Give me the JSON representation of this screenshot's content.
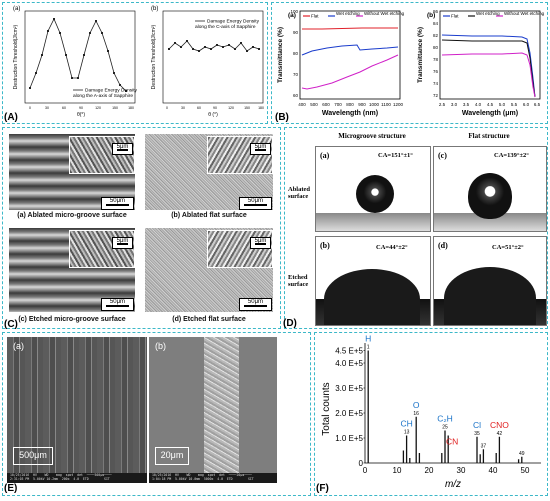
{
  "panelA": {
    "label": "(A)",
    "sub_a": "(a)",
    "sub_b": "(b)",
    "left_chart": {
      "ylabel": "Destruction Threshold(J/cm²)",
      "xlabel": "θ(°)",
      "legend": "Damage Energy Density",
      "legend2": "along the A-axis of Sapphire",
      "xticks": [
        "0",
        "30",
        "60",
        "90",
        "120",
        "150",
        "180"
      ]
    },
    "right_chart": {
      "ylabel": "Destruction Threshold(J/cm²)",
      "xlabel": "θ (°)",
      "legend": "Damage Energy Density",
      "legend2": "along the C-axis of Sapphire",
      "xticks": [
        "0",
        "30",
        "60",
        "90",
        "120",
        "150",
        "180"
      ]
    }
  },
  "panelB": {
    "label": "(B)",
    "sub_a": "(a)",
    "sub_b": "(b)",
    "legend": [
      "Flat",
      "Wet etching",
      "Without Wet etching"
    ],
    "left": {
      "ylabel": "Transmittance (%)",
      "xlabel": "Wavelength (nm)",
      "xticks": [
        "400",
        "500",
        "600",
        "700",
        "800",
        "900",
        "1000",
        "1100",
        "1200"
      ],
      "yticks": [
        "60",
        "70",
        "80",
        "90",
        "100"
      ]
    },
    "right": {
      "ylabel": "Transmittance (%)",
      "xlabel": "Wavelength (μm)",
      "xticks": [
        "2.5",
        "3.0",
        "3.5",
        "4.0",
        "4.5",
        "5.0",
        "5.5",
        "6.0",
        "6.5"
      ],
      "yticks": [
        "72",
        "74",
        "76",
        "78",
        "80",
        "82",
        "84",
        "86"
      ]
    }
  },
  "panelC": {
    "label": "(C)",
    "captions": [
      "(a) Ablated micro-groove surface",
      "(b) Ablated flat surface",
      "(c) Etched micro-groove surface",
      "(d) Etched flat surface"
    ],
    "scale_main": "50μm",
    "scale_inset": "5μm"
  },
  "panelD": {
    "label": "(D)",
    "col1": "Microgroove structure",
    "col2": "Flat structure",
    "row1": [
      "Ablated",
      "surface"
    ],
    "row2": [
      "Etched",
      "surface"
    ],
    "cells": [
      {
        "tag": "(a)",
        "ca": "CA=151°±1°"
      },
      {
        "tag": "(c)",
        "ca": "CA=139°±2°"
      },
      {
        "tag": "(b)",
        "ca": "CA=44°±2°"
      },
      {
        "tag": "(d)",
        "ca": "CA=51°±2°"
      }
    ]
  },
  "panelE": {
    "label": "(E)",
    "sub_a": "(a)",
    "sub_b": "(b)",
    "scale_a": "500μm",
    "scale_b": "20μm",
    "databar_a": "10/25/2016  HV    WD    mag  spot  det  ────500μm────\n2:31:03 PM  5.00kV 10.2mm  200x  4.0  ETD        SIT",
    "databar_b": "10/25/2016  HV    WD    mag  spot  det  ────20μm────\n1:04:18 PM  5.00kV 10.0mm  5000x  4.0  ETD        SIT"
  },
  "panelF": {
    "label": "(F)",
    "chart_data": {
      "type": "bar",
      "ylabel": "Total counts",
      "xlabel": "m/z",
      "yticks": [
        "0",
        "1.0 E+5",
        "2.0 E+5",
        "3.0 E+5",
        "4.0 E+5",
        "4.5 E+5"
      ],
      "xticks": [
        "0",
        "10",
        "20",
        "30",
        "40",
        "50"
      ],
      "peaks": [
        {
          "mz": 1,
          "counts": 450000,
          "label": "H",
          "mass": "1",
          "color": "#1a73c8"
        },
        {
          "mz": 12,
          "counts": 50000
        },
        {
          "mz": 13,
          "counts": 110000,
          "label": "CH",
          "mass": "13",
          "color": "#1a73c8"
        },
        {
          "mz": 14,
          "counts": 20000
        },
        {
          "mz": 16,
          "counts": 185000,
          "label": "O",
          "mass": "16",
          "color": "#1a73c8"
        },
        {
          "mz": 17,
          "counts": 40000
        },
        {
          "mz": 24,
          "counts": 40000
        },
        {
          "mz": 25,
          "counts": 130000,
          "label": "C₂H",
          "mass": "25",
          "color": "#1a73c8"
        },
        {
          "mz": 26,
          "counts": 110000,
          "label": "CN",
          "mass": "",
          "color": "#e02020"
        },
        {
          "mz": 35,
          "counts": 105000,
          "label": "Cl",
          "mass": "35",
          "color": "#1a73c8"
        },
        {
          "mz": 36,
          "counts": 35000
        },
        {
          "mz": 37,
          "counts": 55000,
          "mass": "37"
        },
        {
          "mz": 41,
          "counts": 40000
        },
        {
          "mz": 42,
          "counts": 105000,
          "label": "CNO",
          "mass": "42",
          "color": "#e02020"
        },
        {
          "mz": 48,
          "counts": 15000
        },
        {
          "mz": 49,
          "counts": 25000,
          "mass": "49"
        }
      ],
      "ylim": [
        0,
        480000
      ],
      "xlim": [
        0,
        55
      ]
    }
  },
  "colors": {
    "border": "#3cb8c8",
    "flat": "#e0202a",
    "wet": "#1a3ccc",
    "without": "#d020c8"
  }
}
